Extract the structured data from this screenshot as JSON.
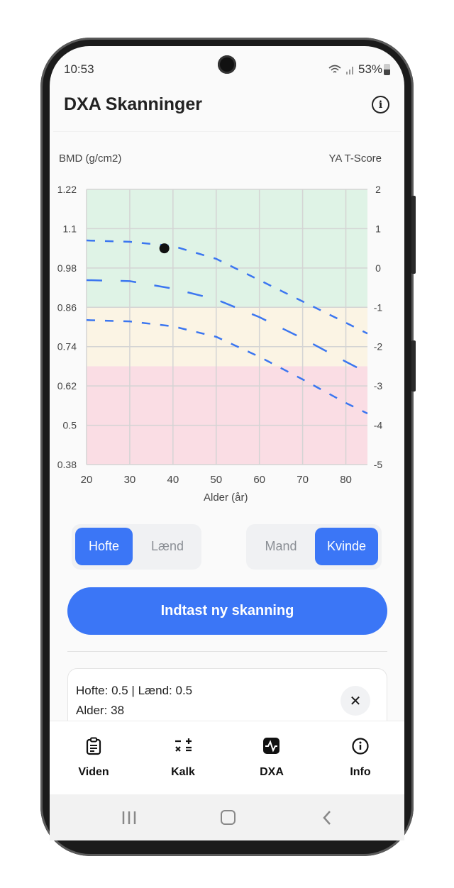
{
  "status_bar": {
    "time": "10:53",
    "battery": "53%"
  },
  "header": {
    "title": "DXA Skanninger",
    "info_icon": "info-circle-icon"
  },
  "chart_data": {
    "type": "line",
    "ylabel": "BMD (g/cm2)",
    "y2label": "YA T-Score",
    "xlabel": "Alder (år)",
    "xlim": [
      20,
      85
    ],
    "ylim": [
      0.38,
      1.22
    ],
    "y2lim": [
      -5,
      2
    ],
    "x_ticks": [
      "20",
      "30",
      "40",
      "50",
      "60",
      "70",
      "80"
    ],
    "y_ticks": [
      "1.22",
      "1.1",
      "0.98",
      "0.86",
      "0.74",
      "0.62",
      "0.5",
      "0.38"
    ],
    "y2_ticks": [
      "2",
      "1",
      "0",
      "-1",
      "-2",
      "-3",
      "-4",
      "-5"
    ],
    "grid": true,
    "bands": [
      {
        "from": 0.86,
        "to": 1.22,
        "color": "#dff3e6"
      },
      {
        "from": 0.68,
        "to": 0.86,
        "color": "#fbf4e4"
      },
      {
        "from": 0.38,
        "to": 0.68,
        "color": "#fadde4"
      }
    ],
    "x": [
      20,
      30,
      40,
      50,
      60,
      70,
      80,
      85
    ],
    "series": [
      {
        "values": [
          1.064,
          1.06,
          1.047,
          1.008,
          0.943,
          0.878,
          0.813,
          0.78
        ],
        "color": "#3b76f0",
        "dash": "short"
      },
      {
        "values": [
          0.943,
          0.94,
          0.917,
          0.884,
          0.83,
          0.765,
          0.694,
          0.66
        ],
        "color": "#3b76f0",
        "dash": "long"
      },
      {
        "values": [
          0.821,
          0.817,
          0.802,
          0.77,
          0.709,
          0.64,
          0.568,
          0.536
        ],
        "color": "#3b76f0",
        "dash": "short"
      }
    ],
    "points": [
      {
        "x": 38,
        "y": 1.04,
        "color": "#111111"
      }
    ]
  },
  "site_toggle": {
    "options": [
      "Hofte",
      "Lænd"
    ],
    "selected": "Hofte"
  },
  "sex_toggle": {
    "options": [
      "Mand",
      "Kvinde"
    ],
    "selected": "Kvinde"
  },
  "cta_label": "Indtast ny skanning",
  "scan_card": {
    "line1": "Hofte: 0.5 | Lænd: 0.5",
    "line2": "Alder: 38",
    "close_icon": "close-icon"
  },
  "nav": [
    {
      "label": "Viden",
      "icon": "clipboard-icon"
    },
    {
      "label": "Kalk",
      "icon": "calculator-icon"
    },
    {
      "label": "DXA",
      "icon": "waveform-icon"
    },
    {
      "label": "Info",
      "icon": "info-icon"
    }
  ],
  "accent": "#3b76f6"
}
